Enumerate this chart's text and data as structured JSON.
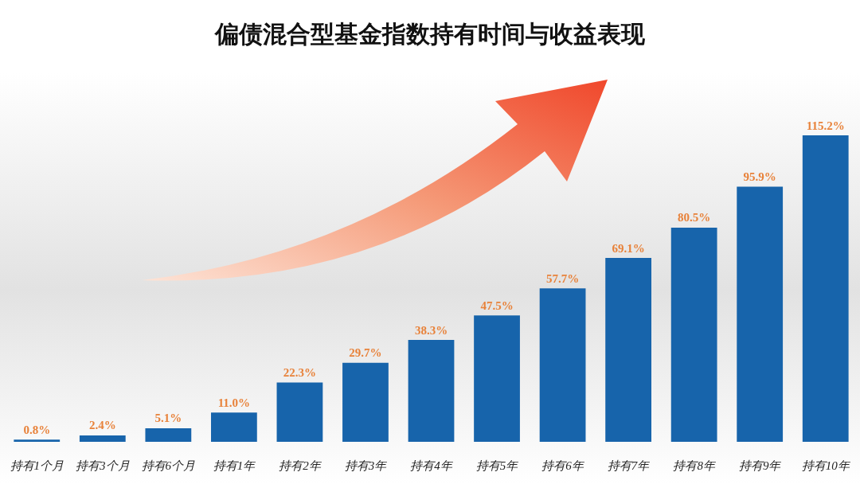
{
  "chart_data": {
    "type": "bar",
    "title": "偏债混合型基金指数持有时间与收益表现",
    "categories": [
      "持有1个月",
      "持有3个月",
      "持有6个月",
      "持有1年",
      "持有2年",
      "持有3年",
      "持有4年",
      "持有5年",
      "持有6年",
      "持有7年",
      "持有8年",
      "持有9年",
      "持有10年"
    ],
    "values": [
      0.8,
      2.4,
      5.1,
      11.0,
      22.3,
      29.7,
      38.3,
      47.5,
      57.7,
      69.1,
      80.5,
      95.9,
      115.2
    ],
    "value_labels": [
      "0.8%",
      "2.4%",
      "5.1%",
      "11.0%",
      "22.3%",
      "29.7%",
      "38.3%",
      "47.5%",
      "57.7%",
      "69.1%",
      "80.5%",
      "95.9%",
      "115.2%"
    ],
    "color": "#1764ab",
    "tick_labels": "x"
  }
}
